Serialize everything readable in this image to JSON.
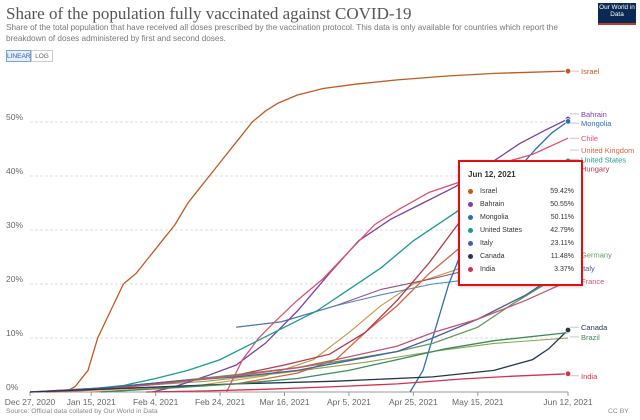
{
  "header": {
    "title": "Share of the population fully vaccinated against COVID-19",
    "subtitle": "Share of the total population that have received all doses prescribed by the vaccination protocol. This data is only available for countries which report the breakdown of doses administered by first and second doses.",
    "logo_text": "Our World in Data"
  },
  "controls": {
    "linear_label": "LINEAR",
    "log_label": "LOG",
    "active": "linear"
  },
  "footer": {
    "source": "Source: Official data collated by Our World in Data",
    "license": "CC BY"
  },
  "tooltip": {
    "date": "Jun 12, 2021",
    "rows": [
      {
        "name": "Israel",
        "value": "59.42%",
        "color": "#c05a1f"
      },
      {
        "name": "Bahrain",
        "value": "50.55%",
        "color": "#7d3fa3"
      },
      {
        "name": "Mongolia",
        "value": "50.11%",
        "color": "#2a6fb5"
      },
      {
        "name": "United States",
        "value": "42.79%",
        "color": "#189c8e"
      },
      {
        "name": "Italy",
        "value": "23.11%",
        "color": "#4a5f98"
      },
      {
        "name": "Canada",
        "value": "11.48%",
        "color": "#26374d"
      },
      {
        "name": "India",
        "value": "3.37%",
        "color": "#d6304a"
      }
    ]
  },
  "chart_data": {
    "type": "line",
    "title": "Share of the population fully vaccinated against COVID-19",
    "ylim": [
      0,
      60
    ],
    "y_ticks": [
      0,
      10,
      20,
      30,
      40,
      50
    ],
    "y_tick_labels": [
      "0%",
      "10%",
      "20%",
      "30%",
      "40%",
      "50%"
    ],
    "x_range": [
      "2020-12-27",
      "2021-06-12"
    ],
    "x_ticks": [
      "2020-12-27",
      "2021-01-15",
      "2021-02-04",
      "2021-02-24",
      "2021-03-16",
      "2021-04-05",
      "2021-04-25",
      "2021-05-15",
      "2021-06-12"
    ],
    "x_tick_labels": [
      "Dec 27, 2020",
      "Jan 15, 2021",
      "Feb 4, 2021",
      "Feb 24, 2021",
      "Mar 16, 2021",
      "Apr 5, 2021",
      "Apr 25, 2021",
      "May 15, 2021",
      "Jun 12, 2021"
    ],
    "grid": true,
    "series": [
      {
        "name": "Israel",
        "color": "#c05a1f",
        "points": [
          [
            "2021-01-07",
            0
          ],
          [
            "2021-01-10",
            1
          ],
          [
            "2021-01-14",
            4
          ],
          [
            "2021-01-17",
            10
          ],
          [
            "2021-01-21",
            15
          ],
          [
            "2021-01-25",
            20
          ],
          [
            "2021-01-29",
            22
          ],
          [
            "2021-02-02",
            25
          ],
          [
            "2021-02-06",
            28
          ],
          [
            "2021-02-10",
            31
          ],
          [
            "2021-02-14",
            35
          ],
          [
            "2021-02-18",
            38
          ],
          [
            "2021-02-22",
            41
          ],
          [
            "2021-02-26",
            44
          ],
          [
            "2021-03-02",
            47
          ],
          [
            "2021-03-06",
            50
          ],
          [
            "2021-03-10",
            52
          ],
          [
            "2021-03-14",
            53.5
          ],
          [
            "2021-03-20",
            55
          ],
          [
            "2021-03-28",
            56.2
          ],
          [
            "2021-04-07",
            57
          ],
          [
            "2021-04-20",
            57.8
          ],
          [
            "2021-05-05",
            58.5
          ],
          [
            "2021-05-20",
            59
          ],
          [
            "2021-06-12",
            59.42
          ]
        ]
      },
      {
        "name": "Bahrain",
        "color": "#7d3fa3",
        "points": [
          [
            "2021-02-03",
            0
          ],
          [
            "2021-02-10",
            1
          ],
          [
            "2021-02-20",
            3
          ],
          [
            "2021-03-01",
            5
          ],
          [
            "2021-03-10",
            9
          ],
          [
            "2021-03-20",
            15
          ],
          [
            "2021-03-30",
            22
          ],
          [
            "2021-04-08",
            28
          ],
          [
            "2021-04-18",
            32
          ],
          [
            "2021-04-28",
            35
          ],
          [
            "2021-05-08",
            38
          ],
          [
            "2021-05-18",
            42
          ],
          [
            "2021-05-28",
            46
          ],
          [
            "2021-06-05",
            48.5
          ],
          [
            "2021-06-12",
            50.55
          ]
        ]
      },
      {
        "name": "Mongolia",
        "color": "#2a6fb5",
        "points": [
          [
            "2021-04-24",
            0
          ],
          [
            "2021-04-28",
            4
          ],
          [
            "2021-05-02",
            12
          ],
          [
            "2021-05-06",
            20
          ],
          [
            "2021-05-10",
            26
          ],
          [
            "2021-05-14",
            30
          ],
          [
            "2021-05-18",
            33
          ],
          [
            "2021-05-22",
            37
          ],
          [
            "2021-05-27",
            41
          ],
          [
            "2021-06-02",
            45
          ],
          [
            "2021-06-07",
            48
          ],
          [
            "2021-06-12",
            50.11
          ]
        ]
      },
      {
        "name": "Chile",
        "color": "#e0506e",
        "points": [
          [
            "2021-02-26",
            0
          ],
          [
            "2021-03-03",
            6
          ],
          [
            "2021-03-08",
            10
          ],
          [
            "2021-03-13",
            13
          ],
          [
            "2021-03-20",
            17
          ],
          [
            "2021-03-28",
            21
          ],
          [
            "2021-04-05",
            26
          ],
          [
            "2021-04-13",
            31
          ],
          [
            "2021-04-21",
            34
          ],
          [
            "2021-04-30",
            37
          ],
          [
            "2021-05-10",
            39
          ],
          [
            "2021-05-20",
            42
          ],
          [
            "2021-06-01",
            44
          ],
          [
            "2021-06-12",
            47
          ]
        ]
      },
      {
        "name": "United Kingdom",
        "color": "#d4653f",
        "points": [
          [
            "2021-01-03",
            0
          ],
          [
            "2021-02-01",
            0.8
          ],
          [
            "2021-03-01",
            1.5
          ],
          [
            "2021-03-20",
            3.5
          ],
          [
            "2021-04-01",
            6
          ],
          [
            "2021-04-10",
            11
          ],
          [
            "2021-04-20",
            16
          ],
          [
            "2021-04-30",
            22
          ],
          [
            "2021-05-10",
            27
          ],
          [
            "2021-05-20",
            33
          ],
          [
            "2021-05-30",
            38
          ],
          [
            "2021-06-12",
            43
          ]
        ]
      },
      {
        "name": "United States",
        "color": "#189c8e",
        "points": [
          [
            "2020-12-27",
            0
          ],
          [
            "2021-01-10",
            0.3
          ],
          [
            "2021-01-25",
            1.2
          ],
          [
            "2021-02-04",
            2.5
          ],
          [
            "2021-02-14",
            4
          ],
          [
            "2021-02-24",
            6
          ],
          [
            "2021-03-06",
            9
          ],
          [
            "2021-03-16",
            12
          ],
          [
            "2021-03-26",
            15
          ],
          [
            "2021-04-05",
            19
          ],
          [
            "2021-04-15",
            23
          ],
          [
            "2021-04-25",
            28
          ],
          [
            "2021-05-05",
            32
          ],
          [
            "2021-05-15",
            36
          ],
          [
            "2021-05-25",
            39
          ],
          [
            "2021-06-04",
            41.5
          ],
          [
            "2021-06-12",
            42.79
          ]
        ]
      },
      {
        "name": "Hungary",
        "color": "#b5384c",
        "points": [
          [
            "2021-01-01",
            0
          ],
          [
            "2021-01-20",
            0.8
          ],
          [
            "2021-02-10",
            2
          ],
          [
            "2021-02-28",
            3
          ],
          [
            "2021-03-16",
            5
          ],
          [
            "2021-03-30",
            7
          ],
          [
            "2021-04-10",
            11
          ],
          [
            "2021-04-20",
            17
          ],
          [
            "2021-04-30",
            24
          ],
          [
            "2021-05-10",
            32
          ],
          [
            "2021-05-20",
            36
          ],
          [
            "2021-05-30",
            40
          ],
          [
            "2021-06-12",
            42
          ]
        ]
      },
      {
        "name": "Germany",
        "color": "#5d9c59",
        "points": [
          [
            "2020-12-27",
            0
          ],
          [
            "2021-01-20",
            0.8
          ],
          [
            "2021-02-10",
            2
          ],
          [
            "2021-03-01",
            3.2
          ],
          [
            "2021-03-20",
            4.5
          ],
          [
            "2021-04-05",
            6
          ],
          [
            "2021-04-20",
            7.5
          ],
          [
            "2021-05-01",
            9
          ],
          [
            "2021-05-15",
            12
          ],
          [
            "2021-05-25",
            16
          ],
          [
            "2021-06-05",
            20
          ],
          [
            "2021-06-12",
            25
          ]
        ]
      },
      {
        "name": "Italy",
        "color": "#4a5f98",
        "points": [
          [
            "2020-12-27",
            0
          ],
          [
            "2021-01-20",
            0.8
          ],
          [
            "2021-02-10",
            2
          ],
          [
            "2021-03-01",
            2.8
          ],
          [
            "2021-03-20",
            4
          ],
          [
            "2021-04-05",
            5.8
          ],
          [
            "2021-04-20",
            7.5
          ],
          [
            "2021-05-01",
            10
          ],
          [
            "2021-05-15",
            13.5
          ],
          [
            "2021-05-30",
            18
          ],
          [
            "2021-06-12",
            23.11
          ]
        ]
      },
      {
        "name": "France",
        "color": "#c4556e",
        "points": [
          [
            "2020-12-27",
            0
          ],
          [
            "2021-01-20",
            0.5
          ],
          [
            "2021-02-10",
            1.8
          ],
          [
            "2021-03-01",
            3
          ],
          [
            "2021-03-20",
            4.5
          ],
          [
            "2021-04-05",
            6.5
          ],
          [
            "2021-04-20",
            8.5
          ],
          [
            "2021-05-01",
            11
          ],
          [
            "2021-05-15",
            13.5
          ],
          [
            "2021-05-30",
            17
          ],
          [
            "2021-06-12",
            20.5
          ]
        ]
      },
      {
        "name": "Canada",
        "color": "#26374d",
        "points": [
          [
            "2020-12-27",
            0
          ],
          [
            "2021-01-30",
            0.8
          ],
          [
            "2021-03-01",
            1.5
          ],
          [
            "2021-04-01",
            2
          ],
          [
            "2021-05-01",
            2.8
          ],
          [
            "2021-05-20",
            4
          ],
          [
            "2021-06-01",
            6
          ],
          [
            "2021-06-06",
            8
          ],
          [
            "2021-06-12",
            11.48
          ]
        ]
      },
      {
        "name": "Brazil",
        "color": "#3d8a5c",
        "points": [
          [
            "2021-01-18",
            0
          ],
          [
            "2021-02-10",
            0.8
          ],
          [
            "2021-03-01",
            1.5
          ],
          [
            "2021-03-20",
            2.5
          ],
          [
            "2021-04-05",
            4
          ],
          [
            "2021-04-20",
            6
          ],
          [
            "2021-05-05",
            8
          ],
          [
            "2021-05-20",
            9.5
          ],
          [
            "2021-06-12",
            11
          ]
        ]
      },
      {
        "name": "India",
        "color": "#d6304a",
        "points": [
          [
            "2021-02-01",
            0
          ],
          [
            "2021-02-20",
            0.2
          ],
          [
            "2021-03-10",
            0.5
          ],
          [
            "2021-04-01",
            1
          ],
          [
            "2021-04-20",
            1.5
          ],
          [
            "2021-05-10",
            2.4
          ],
          [
            "2021-05-25",
            2.9
          ],
          [
            "2021-06-12",
            3.37
          ]
        ]
      }
    ],
    "highlight_series": [
      "Mongolia",
      "Bahrain",
      "Israel",
      "United States",
      "Canada",
      "Italy",
      "India"
    ],
    "extra_lines": [
      {
        "color": "#c08a2a",
        "points": [
          [
            "2021-01-15",
            0
          ],
          [
            "2021-02-15",
            1
          ],
          [
            "2021-03-10",
            3
          ],
          [
            "2021-03-25",
            6
          ],
          [
            "2021-04-05",
            11
          ],
          [
            "2021-04-15",
            16
          ],
          [
            "2021-04-25",
            20
          ],
          [
            "2021-05-10",
            23
          ],
          [
            "2021-05-25",
            26
          ],
          [
            "2021-06-12",
            27
          ]
        ]
      },
      {
        "color": "#8b3e74",
        "points": [
          [
            "2021-03-01",
            12
          ],
          [
            "2021-03-15",
            13
          ],
          [
            "2021-04-01",
            16
          ],
          [
            "2021-04-15",
            19
          ],
          [
            "2021-05-01",
            21
          ],
          [
            "2021-05-15",
            23
          ],
          [
            "2021-06-12",
            24.5
          ]
        ]
      },
      {
        "color": "#3f7fb3",
        "points": [
          [
            "2021-03-01",
            12
          ],
          [
            "2021-03-15",
            13
          ],
          [
            "2021-04-01",
            16
          ],
          [
            "2021-04-15",
            18
          ],
          [
            "2021-05-01",
            20
          ],
          [
            "2021-05-15",
            21
          ],
          [
            "2021-06-12",
            22
          ]
        ]
      },
      {
        "color": "#7a9a3a",
        "points": [
          [
            "2021-01-01",
            0
          ],
          [
            "2021-02-20",
            2
          ],
          [
            "2021-03-15",
            3.5
          ],
          [
            "2021-04-10",
            5.5
          ],
          [
            "2021-05-01",
            7.5
          ],
          [
            "2021-05-20",
            9
          ],
          [
            "2021-06-12",
            10
          ]
        ]
      }
    ],
    "legend": "right-side labels",
    "labels_right": [
      {
        "name": "Israel",
        "y": 59.42,
        "color": "#c05a1f"
      },
      {
        "name": "Bahrain",
        "y": 51.5,
        "color": "#7d3fa3"
      },
      {
        "name": "Mongolia",
        "y": 49.8,
        "color": "#2a6fb5"
      },
      {
        "name": "Chile",
        "y": 47,
        "color": "#e0506e"
      },
      {
        "name": "United Kingdom",
        "y": 44.8,
        "color": "#d4653f"
      },
      {
        "name": "United States",
        "y": 43.1,
        "color": "#189c8e"
      },
      {
        "name": "Hungary",
        "y": 41.4,
        "color": "#b5384c"
      },
      {
        "name": "Germany",
        "y": 25.5,
        "color": "#5d9c59"
      },
      {
        "name": "Italy",
        "y": 23,
        "color": "#4a5f98"
      },
      {
        "name": "France",
        "y": 20.6,
        "color": "#c4556e"
      },
      {
        "name": "Canada",
        "y": 12,
        "color": "#26374d"
      },
      {
        "name": "Brazil",
        "y": 10.2,
        "color": "#3d8a5c"
      },
      {
        "name": "India",
        "y": 3,
        "color": "#d6304a"
      }
    ]
  }
}
